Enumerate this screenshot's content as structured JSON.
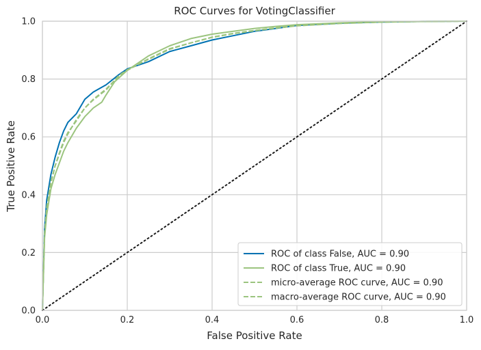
{
  "chart_data": {
    "type": "line",
    "title": "ROC Curves for VotingClassifier",
    "xlabel": "False Positive Rate",
    "ylabel": "True Positive Rate",
    "xlim": [
      0,
      1
    ],
    "ylim": [
      0,
      1
    ],
    "xticks": [
      "0.0",
      "0.2",
      "0.4",
      "0.6",
      "0.8",
      "1.0"
    ],
    "yticks": [
      "0.0",
      "0.2",
      "0.4",
      "0.6",
      "0.8",
      "1.0"
    ],
    "grid": true,
    "legend_position": "lower-right",
    "series": [
      {
        "name": "ROC of class False, AUC = 0.90",
        "color": "#0072b2",
        "style": "solid",
        "x": [
          0,
          0.005,
          0.01,
          0.02,
          0.03,
          0.04,
          0.05,
          0.06,
          0.08,
          0.1,
          0.12,
          0.15,
          0.18,
          0.2,
          0.25,
          0.3,
          0.35,
          0.4,
          0.45,
          0.5,
          0.55,
          0.6,
          0.7,
          0.8,
          0.9,
          1.0
        ],
        "y": [
          0,
          0.28,
          0.38,
          0.47,
          0.53,
          0.58,
          0.62,
          0.65,
          0.68,
          0.73,
          0.755,
          0.78,
          0.815,
          0.835,
          0.86,
          0.895,
          0.915,
          0.935,
          0.95,
          0.965,
          0.975,
          0.985,
          0.993,
          0.997,
          0.999,
          1.0
        ]
      },
      {
        "name": "ROC of class True, AUC = 0.90",
        "color": "#9bc47e",
        "style": "solid",
        "x": [
          0,
          0.005,
          0.01,
          0.02,
          0.03,
          0.04,
          0.05,
          0.06,
          0.08,
          0.1,
          0.12,
          0.14,
          0.15,
          0.17,
          0.2,
          0.25,
          0.3,
          0.35,
          0.4,
          0.45,
          0.5,
          0.55,
          0.6,
          0.7,
          0.8,
          0.9,
          1.0
        ],
        "y": [
          0,
          0.25,
          0.33,
          0.42,
          0.47,
          0.51,
          0.55,
          0.58,
          0.63,
          0.67,
          0.7,
          0.72,
          0.745,
          0.79,
          0.83,
          0.88,
          0.915,
          0.94,
          0.955,
          0.965,
          0.975,
          0.982,
          0.988,
          0.994,
          0.998,
          0.999,
          1.0
        ]
      },
      {
        "name": "micro-average ROC curve, AUC = 0.90",
        "color": "#9bc47e",
        "style": "dashed",
        "x": [
          0,
          0.005,
          0.01,
          0.02,
          0.03,
          0.04,
          0.05,
          0.06,
          0.08,
          0.1,
          0.12,
          0.15,
          0.18,
          0.2,
          0.25,
          0.3,
          0.35,
          0.4,
          0.45,
          0.5,
          0.55,
          0.6,
          0.7,
          0.8,
          0.9,
          1.0
        ],
        "y": [
          0,
          0.26,
          0.35,
          0.44,
          0.5,
          0.54,
          0.58,
          0.61,
          0.66,
          0.7,
          0.73,
          0.765,
          0.81,
          0.83,
          0.87,
          0.905,
          0.925,
          0.945,
          0.958,
          0.968,
          0.977,
          0.985,
          0.993,
          0.997,
          0.999,
          1.0
        ]
      },
      {
        "name": "macro-average ROC curve, AUC = 0.90",
        "color": "#9bc47e",
        "style": "dashed",
        "x": [
          0,
          0.005,
          0.01,
          0.02,
          0.03,
          0.04,
          0.05,
          0.06,
          0.08,
          0.1,
          0.12,
          0.15,
          0.18,
          0.2,
          0.25,
          0.3,
          0.35,
          0.4,
          0.45,
          0.5,
          0.55,
          0.6,
          0.7,
          0.8,
          0.9,
          1.0
        ],
        "y": [
          0,
          0.265,
          0.355,
          0.445,
          0.5,
          0.545,
          0.585,
          0.615,
          0.655,
          0.7,
          0.728,
          0.762,
          0.812,
          0.832,
          0.868,
          0.903,
          0.925,
          0.944,
          0.957,
          0.967,
          0.976,
          0.984,
          0.992,
          0.997,
          0.999,
          1.0
        ]
      }
    ],
    "diagonal": {
      "color": "#1a1a1a",
      "style": "dotted",
      "x": [
        0,
        1
      ],
      "y": [
        0,
        1
      ]
    }
  }
}
